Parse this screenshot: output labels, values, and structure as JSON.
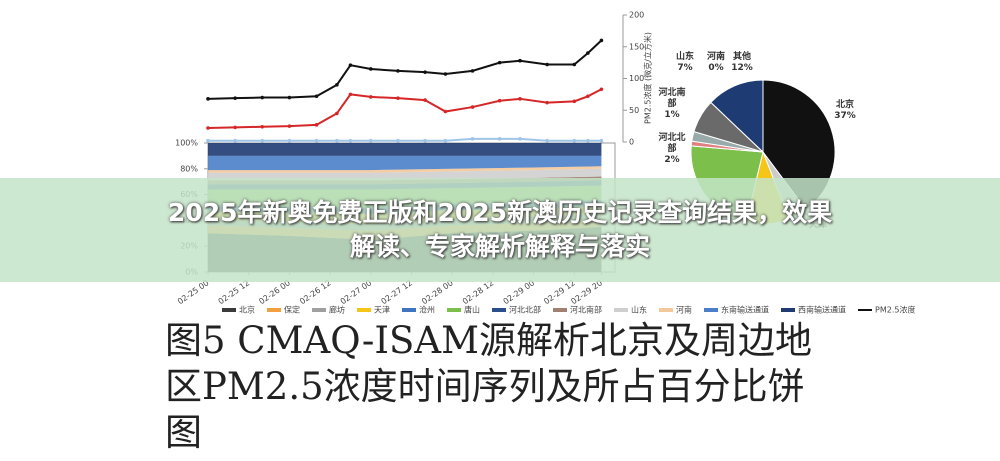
{
  "banner": {
    "lines": [
      "2025年新奥免费正版和2025新澳历史记录查询结果，效果",
      "解读、专家解析解释与落实"
    ]
  },
  "caption": {
    "lines": [
      "图5  CMAQ-ISAM源解析北京及周边地",
      "区PM2.5浓度时间序列及所占百分比饼",
      "图"
    ]
  },
  "chart_data": [
    {
      "type": "line",
      "y2label": "PM2.5浓度 (微克/立方米)",
      "xlim": [
        0,
        120
      ],
      "y2lim": [
        0,
        200
      ],
      "y2ticks": [
        0,
        50,
        100,
        150,
        200
      ],
      "series": [
        {
          "name": "PM2.5浓度",
          "color": "#111111",
          "axis": "y2",
          "x": [
            0,
            8,
            16,
            24,
            32,
            38,
            42,
            48,
            56,
            64,
            70,
            78,
            86,
            92,
            100,
            108,
            112,
            116
          ],
          "values": [
            68,
            69,
            70,
            70,
            72,
            90,
            121,
            115,
            112,
            110,
            107,
            112,
            125,
            128,
            122,
            122,
            140,
            160
          ]
        },
        {
          "color": "#d62728",
          "axis": "y2",
          "x": [
            0,
            8,
            16,
            24,
            32,
            38,
            42,
            48,
            56,
            64,
            70,
            78,
            86,
            92,
            100,
            108,
            112,
            116
          ],
          "values": [
            22,
            23,
            24,
            25,
            27,
            45,
            75,
            71,
            69,
            66,
            48,
            55,
            65,
            68,
            62,
            64,
            72,
            83
          ]
        },
        {
          "color": "#9ec5e8",
          "axis": "y2",
          "x": [
            0,
            8,
            16,
            24,
            32,
            38,
            42,
            48,
            56,
            64,
            70,
            78,
            86,
            92,
            100,
            108,
            112,
            116
          ],
          "values": [
            2,
            2,
            2,
            2,
            2,
            2,
            2,
            2,
            2,
            2,
            2,
            5,
            5,
            5,
            2,
            2,
            2,
            2
          ]
        }
      ]
    },
    {
      "type": "area",
      "stacked": true,
      "xlim": [
        0,
        120
      ],
      "ylim": [
        0,
        100
      ],
      "yticks": [
        {
          "value": 0,
          "label": "0%"
        },
        {
          "value": 20,
          "label": "20%"
        },
        {
          "value": 40,
          "label": "40%"
        },
        {
          "value": 60,
          "label": "60%"
        },
        {
          "value": 80,
          "label": "80%"
        },
        {
          "value": 100,
          "label": "100%"
        }
      ],
      "xticks": [
        {
          "value": 0,
          "label": "02-25 00"
        },
        {
          "value": 12,
          "label": "02-25 12"
        },
        {
          "value": 24,
          "label": "02-26 00"
        },
        {
          "value": 36,
          "label": "02-26 12"
        },
        {
          "value": 48,
          "label": "02-27 00"
        },
        {
          "value": 60,
          "label": "02-27 12"
        },
        {
          "value": 72,
          "label": "02-28 00"
        },
        {
          "value": 84,
          "label": "02-28 12"
        },
        {
          "value": 96,
          "label": "02-29 00"
        },
        {
          "value": 108,
          "label": "02-29 12"
        },
        {
          "value": 116,
          "label": "02-29 20"
        }
      ],
      "x": [
        0,
        24,
        48,
        72,
        96,
        116
      ],
      "series": [
        {
          "name": "北京",
          "color": "#3a3a3a",
          "values": [
            30,
            28,
            25,
            30,
            32,
            35
          ]
        },
        {
          "name": "保定",
          "color": "#f0a040",
          "values": [
            6,
            6,
            7,
            6,
            6,
            5
          ]
        },
        {
          "name": "廊坊",
          "color": "#a0a0a0",
          "values": [
            5,
            5,
            5,
            5,
            5,
            5
          ]
        },
        {
          "name": "天津",
          "color": "#f5c518",
          "values": [
            6,
            7,
            8,
            7,
            6,
            6
          ]
        },
        {
          "name": "沧州",
          "color": "#3f74c0",
          "values": [
            5,
            5,
            5,
            5,
            5,
            5
          ]
        },
        {
          "name": "唐山",
          "color": "#7cbf4a",
          "values": [
            12,
            13,
            14,
            12,
            12,
            11
          ]
        },
        {
          "name": "河北北部",
          "color": "#2a4f8c",
          "values": [
            4,
            4,
            4,
            4,
            4,
            4
          ]
        },
        {
          "name": "河北南部",
          "color": "#a08070",
          "values": [
            3,
            3,
            3,
            3,
            3,
            3
          ]
        },
        {
          "name": "山东",
          "color": "#cfcfcf",
          "values": [
            6,
            6,
            6,
            6,
            6,
            6
          ]
        },
        {
          "name": "河南",
          "color": "#f3c89a",
          "values": [
            2,
            2,
            2,
            2,
            2,
            2
          ]
        },
        {
          "name": "东南输送通道",
          "color": "#4a7fc8",
          "values": [
            11,
            11,
            11,
            10,
            9,
            8
          ]
        },
        {
          "name": "西南输送通道",
          "color": "#1f3b73",
          "values": [
            10,
            10,
            10,
            10,
            10,
            10
          ]
        }
      ]
    },
    {
      "type": "pie",
      "categories": [
        "北京",
        null,
        "天津",
        null,
        "河北南部",
        "河北北部",
        "山东",
        "河南",
        "其他"
      ],
      "values": [
        37,
        4,
        9,
        21,
        1,
        2,
        7,
        0,
        12
      ],
      "value_labels": [
        "37%",
        null,
        null,
        null,
        "1%",
        "2%",
        "7%",
        "0%",
        "12%"
      ],
      "colors": [
        "#111111",
        "#cccccc",
        "#f5c518",
        "#7cbf4a",
        "#e08080",
        "#99aaaa",
        "#6a6a6a",
        "#dddddd",
        "#1f3b73"
      ]
    }
  ]
}
